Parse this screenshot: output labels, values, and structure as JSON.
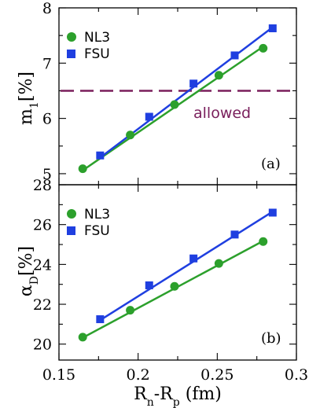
{
  "colors": {
    "nl3": "#2ca02c",
    "fsu": "#1f3fe0",
    "threshold": "#7a1f5c"
  },
  "chart_data": [
    {
      "type": "scatter",
      "panel_label": "(a)",
      "ylabel_main": "m",
      "ylabel_sub": "1",
      "ylabel_rest": "[%]",
      "xlim": [
        0.15,
        0.3
      ],
      "ylim": [
        4.8,
        8
      ],
      "yticks": [
        5,
        6,
        7,
        8
      ],
      "threshold": {
        "y": 6.5,
        "label": "allowed"
      },
      "legend_position": "top-left",
      "series": [
        {
          "name": "NL3",
          "marker": "circle",
          "color_key": "nl3",
          "x": [
            0.165,
            0.195,
            0.223,
            0.251,
            0.279
          ],
          "y": [
            5.09,
            5.7,
            6.25,
            6.78,
            7.27
          ],
          "fit": [
            [
              0.165,
              5.06
            ],
            [
              0.279,
              7.3
            ]
          ]
        },
        {
          "name": "FSU",
          "marker": "square",
          "color_key": "fsu",
          "x": [
            0.176,
            0.207,
            0.235,
            0.261,
            0.285
          ],
          "y": [
            5.33,
            6.03,
            6.63,
            7.14,
            7.63
          ],
          "fit": [
            [
              0.176,
              5.29
            ],
            [
              0.285,
              7.65
            ]
          ]
        }
      ]
    },
    {
      "type": "scatter",
      "panel_label": "(b)",
      "ylabel_main": "α",
      "ylabel_sub": "D",
      "ylabel_rest": "[%]",
      "xlabel": "Rn-Rp (fm)",
      "xlabel_parts": [
        "R",
        "n",
        "-R",
        "p",
        " (fm)"
      ],
      "xlim": [
        0.15,
        0.3
      ],
      "ylim": [
        19.2,
        28
      ],
      "xticks": [
        0.15,
        0.2,
        0.25,
        0.3
      ],
      "xtick_labels": [
        "0.15",
        "0.2",
        "0.25",
        "0.3"
      ],
      "yticks": [
        20,
        22,
        24,
        26,
        28
      ],
      "legend_position": "top-left",
      "series": [
        {
          "name": "NL3",
          "marker": "circle",
          "color_key": "nl3",
          "x": [
            0.165,
            0.195,
            0.223,
            0.251,
            0.279
          ],
          "y": [
            20.35,
            21.7,
            22.9,
            24.05,
            25.15
          ],
          "fit": [
            [
              0.165,
              20.32
            ],
            [
              0.279,
              25.18
            ]
          ]
        },
        {
          "name": "FSU",
          "marker": "square",
          "color_key": "fsu",
          "x": [
            0.176,
            0.207,
            0.235,
            0.261,
            0.285
          ],
          "y": [
            21.25,
            22.95,
            24.3,
            25.5,
            26.6
          ],
          "fit": [
            [
              0.176,
              21.2
            ],
            [
              0.285,
              26.65
            ]
          ]
        }
      ]
    }
  ]
}
